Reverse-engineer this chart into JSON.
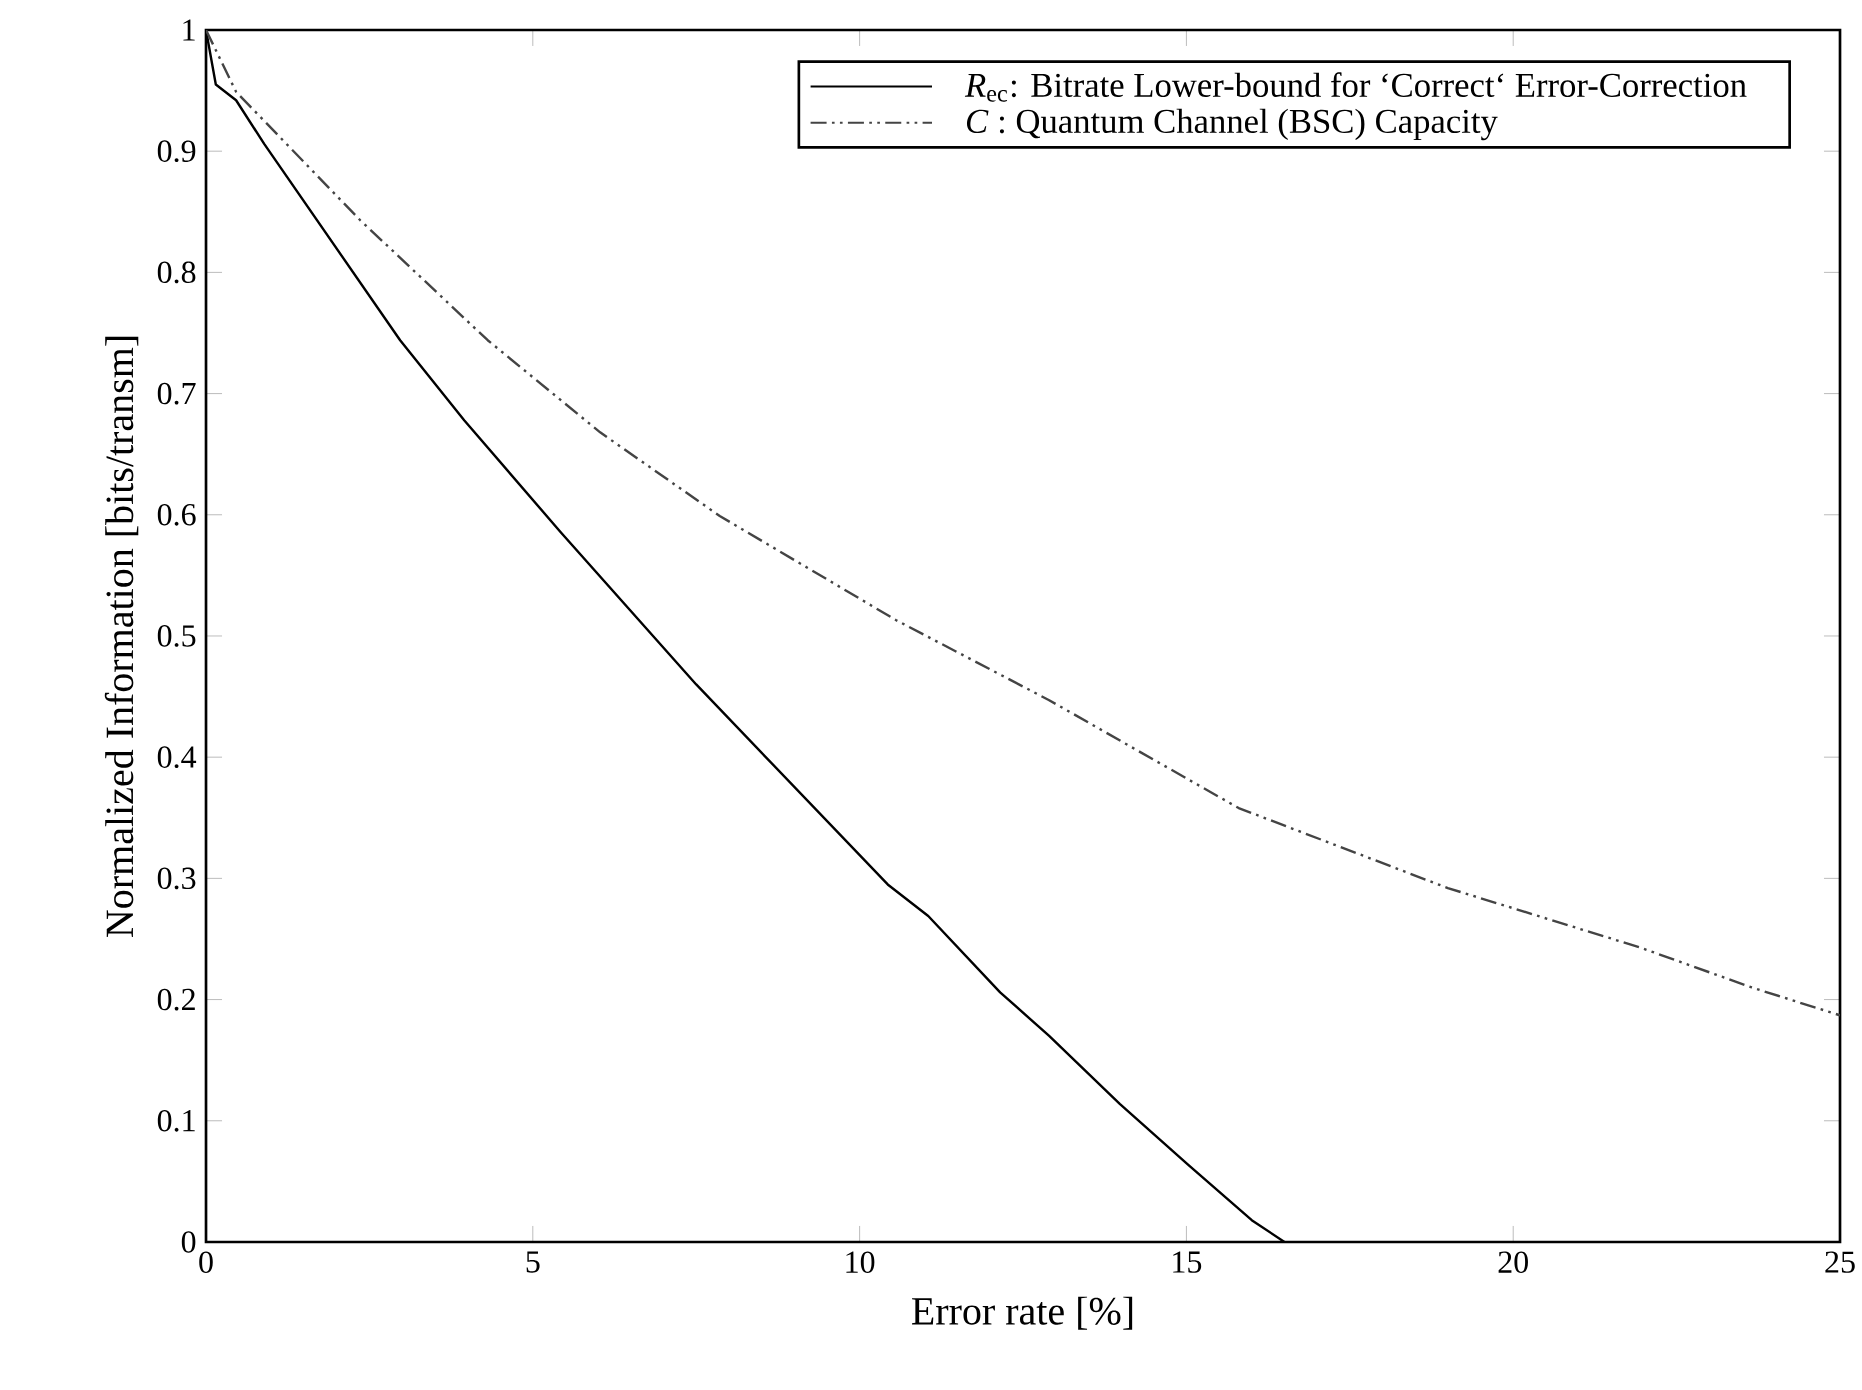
{
  "chart_data": {
    "type": "line",
    "xlabel": "Error rate [%]",
    "ylabel": "Normalized Information [bits/transm]",
    "xlim": [
      0,
      25
    ],
    "ylim": [
      0,
      1
    ],
    "xticks": [
      0,
      5,
      10,
      15,
      20,
      25
    ],
    "yticks": [
      0,
      0.1,
      0.2,
      0.3,
      0.4,
      0.5,
      0.6,
      0.7,
      0.8,
      0.9,
      1
    ],
    "grid": false,
    "legend": "top right",
    "marker": "none",
    "series": [
      {
        "name": "*R*$_{ec}$: Bitrate Lower-bound for ‘Correct‘ Error-Correction",
        "color": "#000000",
        "line_style": "solid",
        "x": [
          0,
          0.15,
          0.46,
          0.89,
          2.97,
          3.95,
          5.42,
          7.5,
          10.43,
          11.05,
          12.15,
          12.9,
          13.98,
          15.02,
          16.0,
          16.5
        ],
        "values": [
          1,
          0.955,
          0.942,
          0.906,
          0.744,
          0.678,
          0.586,
          0.46,
          0.295,
          0.269,
          0.206,
          0.17,
          0.114,
          0.064,
          0.018,
          0
        ]
      },
      {
        "name": "*C*   : Quantum Channel (BSC) Capacity",
        "color": "#444444",
        "line_style": "dashed",
        "x": [
          0,
          0.46,
          2.36,
          4.31,
          6.03,
          7.86,
          10.56,
          12.9,
          15.8,
          19.0,
          21.94,
          23.65,
          25
        ],
        "values": [
          1,
          0.949,
          0.843,
          0.744,
          0.668,
          0.599,
          0.513,
          0.447,
          0.358,
          0.292,
          0.243,
          0.21,
          0.187
        ]
      }
    ]
  }
}
